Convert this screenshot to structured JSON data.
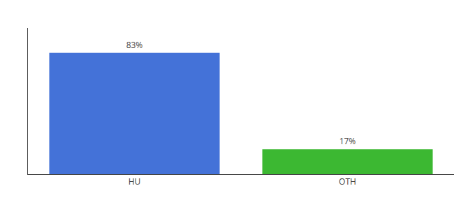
{
  "chart_data": {
    "type": "bar",
    "categories": [
      "HU",
      "OTH"
    ],
    "values": [
      83,
      17
    ],
    "value_labels": [
      "83%",
      "17%"
    ],
    "colors": [
      "#4472D8",
      "#3CB832"
    ],
    "ylim": [
      0,
      100
    ],
    "grid": false,
    "tick_labels": "x",
    "data_labels": true
  }
}
